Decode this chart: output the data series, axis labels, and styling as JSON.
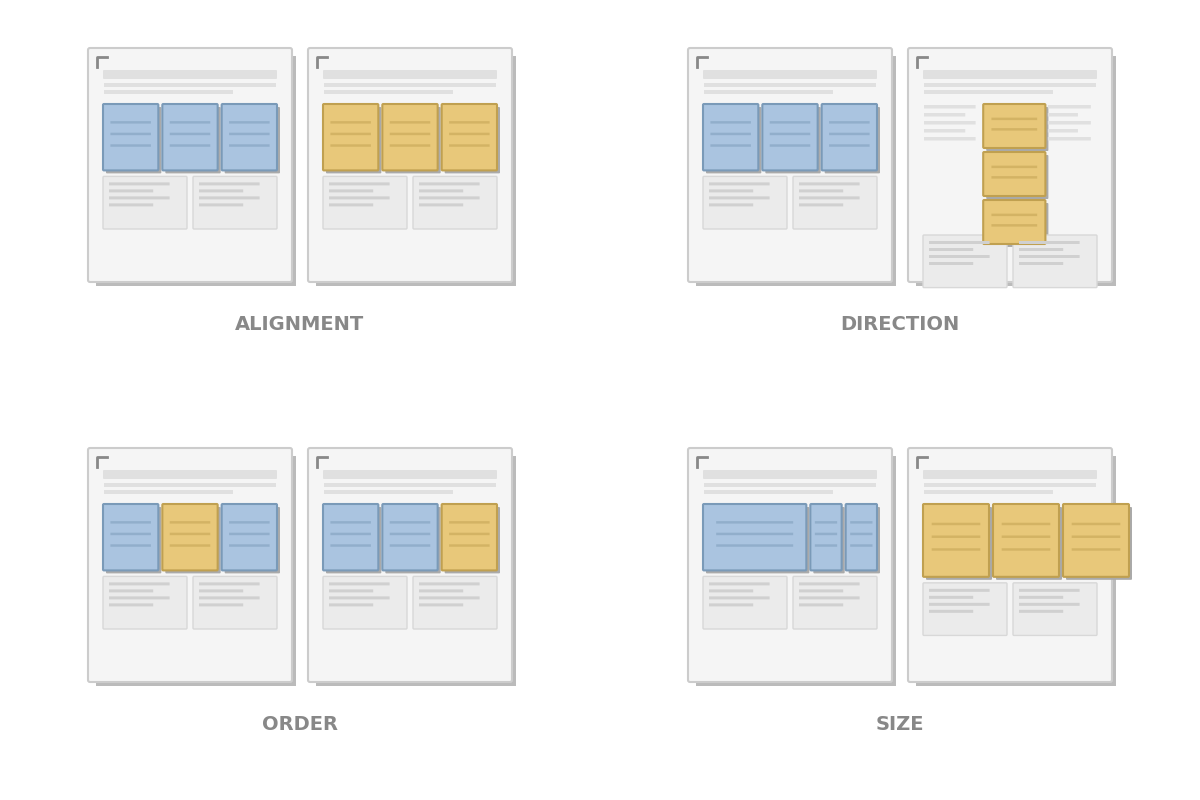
{
  "background_color": "#ffffff",
  "card_bg": "#f5f5f5",
  "card_border": "#cccccc",
  "card_shadow": "#bbbbbb",
  "line_color": "#d0d0d0",
  "blue_fill": "#aac4e0",
  "blue_border": "#7a9ab8",
  "yellow_fill": "#e8c87a",
  "yellow_border": "#c0a050",
  "text_color": "#666666",
  "label_color": "#888888",
  "corner_color": "#888888",
  "labels": [
    "ALIGNMENT",
    "DIRECTION",
    "ORDER",
    "SIZE"
  ],
  "label_fontsize": 14
}
